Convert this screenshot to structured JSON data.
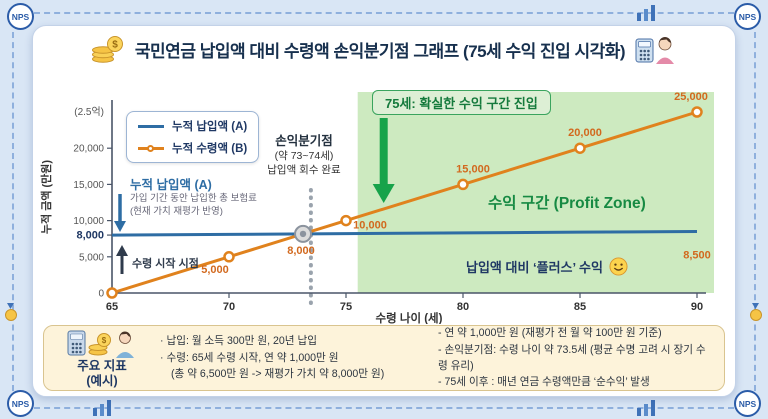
{
  "frame": {
    "badge": "NPS"
  },
  "header": {
    "title": "국민연금 납입액 대비 수령액 손익분기점 그래프 (75세 수익 진입 시각화)"
  },
  "chart": {
    "banner": "75세: 확실한 수익 구간 진입",
    "breakeven": {
      "title": "손익분기점",
      "line1": "(약 73~74세)",
      "line2": "납입액 회수 완료"
    },
    "paid_annotation": {
      "title": "누적 납입액 (A)",
      "desc1": "가입 기간 동안 납입한 총 보험료",
      "desc2": "(현재 가치 재평가 반영)"
    },
    "start_annotation": "수령 시작 시점",
    "zone_label": "수익 구간 (Profit Zone)",
    "plus_label": "납입액 대비 ‘플러스’ 수익"
  },
  "chart_data": {
    "type": "line",
    "x": [
      65,
      70,
      75,
      80,
      85,
      90
    ],
    "xlabel": "수령 나이 (세)",
    "ylabel": "누적 금액 (만원)",
    "xlim": [
      65,
      90
    ],
    "ylim": [
      0,
      25000
    ],
    "yticks": [
      0,
      5000,
      8000,
      10000,
      15000,
      20000
    ],
    "y_top_label": "(2.5억)",
    "grid": false,
    "legend_position": "top-left",
    "series": [
      {
        "name": "누적 납입액 (A)",
        "values": [
          8000,
          8100,
          8200,
          8300,
          8400,
          8500
        ],
        "color": "#2e6da4",
        "markers": false,
        "end_label": "8,500"
      },
      {
        "name": "누적 수령액 (B)",
        "values": [
          0,
          5000,
          10000,
          15000,
          20000,
          25000
        ],
        "color": "#e0821d",
        "markers": true,
        "point_labels": [
          "",
          "5,000",
          "10,000",
          "15,000",
          "20,000",
          "25,000"
        ]
      }
    ],
    "crossing_label": "8,000",
    "breakeven_age": 73.5,
    "profit_zone_start": 75.5
  },
  "footer": {
    "badge": "주요 지표\n(예시)",
    "left_items": [
      "· 납입: 월 소득 300만 원, 20년 납입",
      "· 수령: 65세 수령 시작, 연 약 1,000만 원",
      "(총 약 6,500만 원 -> 재평가 가치 약 8,000만 원)"
    ],
    "right_items": [
      "- 연 약 1,000만 원 (재평가 전 월 약 100만 원 기준)",
      "- 손익분기점: 수령 나이 약 73.5세 (평균 수명 고려 시 장기 수령 유리)",
      "- 75세 이후 : 매년 연금 수령액만큼 ‘순수익’ 발생"
    ]
  },
  "colors": {
    "paid": "#2e6da4",
    "received": "#e0821d",
    "zone": "#cdeac0",
    "green": "#17a34a",
    "green_dark": "#157a3c",
    "navy": "#1f3864",
    "label_orange": "#d2691e"
  }
}
